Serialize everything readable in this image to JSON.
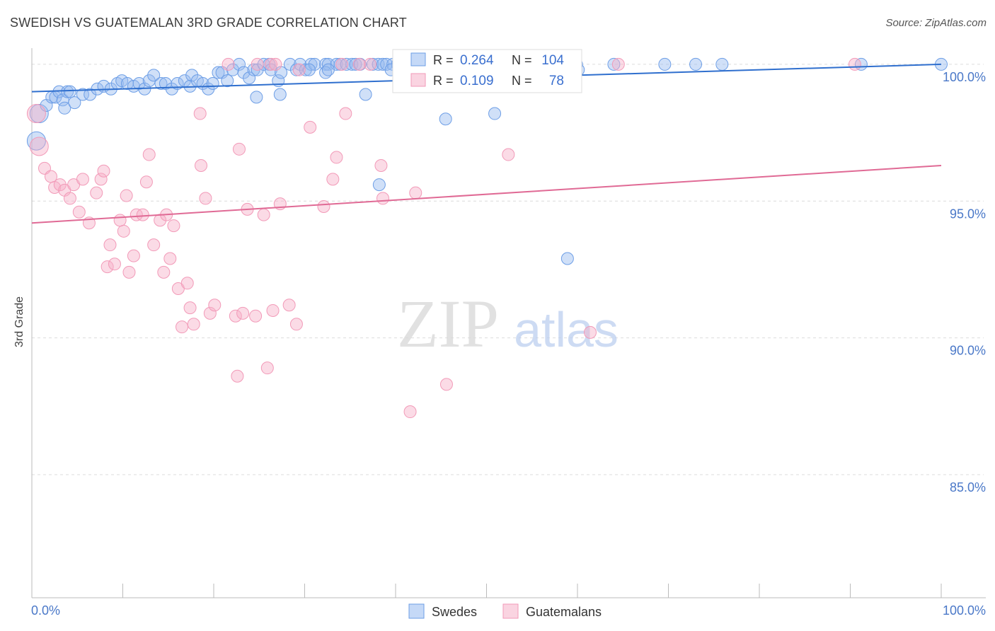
{
  "title": "SWEDISH VS GUATEMALAN 3RD GRADE CORRELATION CHART",
  "source": "Source: ZipAtlas.com",
  "watermark": {
    "zip": "ZIP",
    "atlas": "atlas"
  },
  "chart_data": {
    "type": "scatter",
    "xlabel": "",
    "ylabel": "3rd Grade",
    "xlim": [
      0,
      100
    ],
    "ylim": [
      80.5,
      100.8
    ],
    "x_tick_labels": [
      "0.0%",
      "100.0%"
    ],
    "y_ticks": [
      {
        "value": 100,
        "label": "100.0%"
      },
      {
        "value": 95,
        "label": "95.0%"
      },
      {
        "value": 90,
        "label": "90.0%"
      },
      {
        "value": 85,
        "label": "85.0%"
      }
    ],
    "grid": "horizontal dashed",
    "legend_position": "bottom-center",
    "stats": [
      {
        "r_label": "R =",
        "r_value": "0.264",
        "n_label": "N =",
        "n_value": "104",
        "color": "#6d9ee6"
      },
      {
        "r_label": "R =",
        "r_value": "0.109",
        "n_label": "N =",
        "n_value": "78",
        "color": "#f29ab8"
      }
    ],
    "series": [
      {
        "name": "Swedes",
        "color": "#6d9ee6",
        "trend": {
          "x": [
            0,
            100
          ],
          "y": [
            99.0,
            100.0
          ],
          "color": "#2f6fce"
        },
        "points": [
          [
            0.5,
            97.2
          ],
          [
            0.8,
            98.2
          ],
          [
            1.6,
            98.5
          ],
          [
            2.2,
            98.8
          ],
          [
            2.6,
            98.8
          ],
          [
            3.0,
            99.0
          ],
          [
            3.4,
            98.7
          ],
          [
            3.6,
            98.4
          ],
          [
            3.9,
            99.0
          ],
          [
            4.2,
            99.0
          ],
          [
            4.7,
            98.6
          ],
          [
            5.6,
            98.9
          ],
          [
            6.4,
            98.9
          ],
          [
            7.2,
            99.1
          ],
          [
            7.9,
            99.2
          ],
          [
            8.7,
            99.1
          ],
          [
            9.4,
            99.3
          ],
          [
            9.9,
            99.4
          ],
          [
            10.5,
            99.3
          ],
          [
            11.2,
            99.2
          ],
          [
            11.8,
            99.3
          ],
          [
            12.4,
            99.1
          ],
          [
            12.9,
            99.4
          ],
          [
            13.4,
            99.6
          ],
          [
            14.2,
            99.3
          ],
          [
            14.7,
            99.3
          ],
          [
            15.4,
            99.1
          ],
          [
            16.0,
            99.3
          ],
          [
            16.8,
            99.4
          ],
          [
            17.4,
            99.2
          ],
          [
            17.6,
            99.6
          ],
          [
            18.2,
            99.4
          ],
          [
            18.8,
            99.3
          ],
          [
            19.4,
            99.1
          ],
          [
            19.9,
            99.3
          ],
          [
            20.5,
            99.7
          ],
          [
            20.9,
            99.7
          ],
          [
            21.5,
            99.4
          ],
          [
            22.1,
            99.8
          ],
          [
            22.8,
            100
          ],
          [
            23.3,
            99.7
          ],
          [
            23.9,
            99.5
          ],
          [
            24.4,
            99.8
          ],
          [
            24.8,
            99.8
          ],
          [
            25.5,
            100
          ],
          [
            26.1,
            100
          ],
          [
            26.3,
            99.8
          ],
          [
            27.1,
            99.4
          ],
          [
            27.4,
            99.7
          ],
          [
            28.4,
            100
          ],
          [
            29.1,
            99.8
          ],
          [
            29.5,
            100
          ],
          [
            30.1,
            99.8
          ],
          [
            30.7,
            100
          ],
          [
            31.1,
            100
          ],
          [
            32.3,
            100
          ],
          [
            32.6,
            100
          ],
          [
            33.5,
            100
          ],
          [
            33.9,
            100
          ],
          [
            34.6,
            100
          ],
          [
            35.2,
            100
          ],
          [
            35.6,
            100
          ],
          [
            36.1,
            100
          ],
          [
            37.5,
            100
          ],
          [
            38.1,
            100
          ],
          [
            38.6,
            100
          ],
          [
            39.0,
            100
          ],
          [
            39.7,
            100
          ],
          [
            40.2,
            100
          ],
          [
            40.8,
            100
          ],
          [
            41.4,
            100
          ],
          [
            42.6,
            100
          ],
          [
            43.3,
            100
          ],
          [
            44.1,
            100
          ],
          [
            44.7,
            100
          ],
          [
            45.3,
            100
          ],
          [
            45.9,
            100
          ],
          [
            46.7,
            100
          ],
          [
            47.4,
            100
          ],
          [
            48.1,
            100
          ],
          [
            49.6,
            100
          ],
          [
            50.2,
            100
          ],
          [
            51.0,
            100
          ],
          [
            53.1,
            100
          ],
          [
            56.4,
            100
          ],
          [
            59.9,
            100
          ],
          [
            64.0,
            100
          ],
          [
            69.6,
            100
          ],
          [
            73.0,
            100
          ],
          [
            75.9,
            100
          ],
          [
            60.1,
            99.8
          ],
          [
            32.3,
            99.7
          ],
          [
            32.6,
            99.8
          ],
          [
            24.7,
            98.8
          ],
          [
            27.3,
            98.9
          ],
          [
            36.7,
            98.9
          ],
          [
            39.5,
            99.8
          ],
          [
            30.5,
            99.8
          ],
          [
            45.5,
            98.0
          ],
          [
            50.9,
            98.2
          ],
          [
            38.2,
            95.6
          ],
          [
            58.9,
            92.9
          ],
          [
            91.2,
            100
          ],
          [
            100,
            100
          ]
        ]
      },
      {
        "name": "Guatemalans",
        "color": "#f29ab8",
        "trend": {
          "x": [
            0,
            100
          ],
          "y": [
            94.2,
            96.3
          ],
          "color": "#e06a95"
        },
        "points": [
          [
            0.5,
            98.2
          ],
          [
            0.8,
            97.0
          ],
          [
            1.4,
            96.2
          ],
          [
            2.1,
            95.9
          ],
          [
            2.5,
            95.5
          ],
          [
            3.1,
            95.6
          ],
          [
            3.6,
            95.4
          ],
          [
            4.2,
            95.1
          ],
          [
            4.6,
            95.6
          ],
          [
            5.2,
            94.6
          ],
          [
            5.6,
            95.8
          ],
          [
            6.3,
            94.2
          ],
          [
            7.1,
            95.3
          ],
          [
            7.6,
            95.8
          ],
          [
            7.9,
            96.1
          ],
          [
            8.3,
            92.6
          ],
          [
            8.6,
            93.4
          ],
          [
            9.1,
            92.7
          ],
          [
            9.7,
            94.3
          ],
          [
            10.1,
            93.9
          ],
          [
            10.4,
            95.2
          ],
          [
            10.7,
            92.4
          ],
          [
            11.2,
            93.0
          ],
          [
            11.5,
            94.5
          ],
          [
            12.2,
            94.5
          ],
          [
            12.6,
            95.7
          ],
          [
            12.9,
            96.7
          ],
          [
            13.4,
            93.4
          ],
          [
            14.1,
            94.3
          ],
          [
            14.5,
            92.4
          ],
          [
            14.8,
            94.5
          ],
          [
            15.2,
            92.9
          ],
          [
            15.6,
            94.1
          ],
          [
            16.1,
            91.8
          ],
          [
            16.5,
            90.4
          ],
          [
            17.1,
            92.0
          ],
          [
            17.4,
            91.1
          ],
          [
            17.8,
            90.5
          ],
          [
            18.5,
            98.2
          ],
          [
            18.6,
            96.3
          ],
          [
            19.1,
            95.1
          ],
          [
            19.6,
            90.9
          ],
          [
            20.1,
            91.2
          ],
          [
            21.6,
            100
          ],
          [
            22.4,
            90.8
          ],
          [
            22.6,
            88.6
          ],
          [
            22.8,
            96.9
          ],
          [
            23.2,
            90.9
          ],
          [
            23.7,
            94.7
          ],
          [
            24.6,
            90.8
          ],
          [
            24.8,
            100
          ],
          [
            25.5,
            94.5
          ],
          [
            25.9,
            88.9
          ],
          [
            26.3,
            100
          ],
          [
            26.5,
            91.0
          ],
          [
            27.3,
            94.9
          ],
          [
            28.3,
            91.2
          ],
          [
            29.1,
            90.5
          ],
          [
            30.6,
            97.7
          ],
          [
            32.1,
            94.8
          ],
          [
            33.1,
            95.8
          ],
          [
            33.5,
            96.6
          ],
          [
            34.5,
            98.2
          ],
          [
            37.2,
            100
          ],
          [
            38.4,
            96.3
          ],
          [
            38.6,
            95.1
          ],
          [
            41.6,
            87.3
          ],
          [
            42.2,
            95.3
          ],
          [
            45.6,
            88.3
          ],
          [
            52.4,
            96.7
          ],
          [
            58.1,
            100
          ],
          [
            61.4,
            90.2
          ],
          [
            64.5,
            100
          ],
          [
            90.5,
            100
          ],
          [
            29.4,
            99.8
          ],
          [
            26.8,
            100
          ],
          [
            34.1,
            100
          ],
          [
            36.0,
            100
          ]
        ]
      }
    ]
  }
}
